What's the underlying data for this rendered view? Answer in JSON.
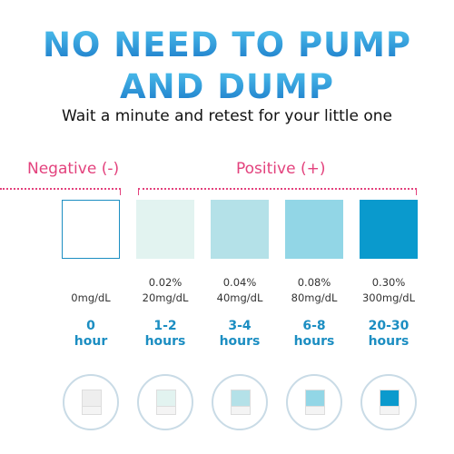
{
  "header": {
    "title_lines": [
      "NO NEED TO PUMP",
      "AND DUMP"
    ],
    "subtitle": "Wait a minute and retest for your little one"
  },
  "groups": {
    "negative": "Negative (-)",
    "positive": "Positive (+)"
  },
  "columns": [
    {
      "color": "#ffffff",
      "mg": "0mg/dL",
      "time": "0",
      "unit": "hour"
    },
    {
      "color": "#e2f3f0",
      "percent": "0.02%",
      "mg": "20mg/dL",
      "time": "1-2",
      "unit": "hours"
    },
    {
      "color": "#b4e1e8",
      "percent": "0.04%",
      "mg": "40mg/dL",
      "time": "3-4",
      "unit": "hours"
    },
    {
      "color": "#92d6e6",
      "percent": "0.08%",
      "mg": "80mg/dL",
      "time": "6-8",
      "unit": "hours"
    },
    {
      "color": "#0a9acd",
      "percent": "0.30%",
      "mg": "300mg/dL",
      "time": "20-30",
      "unit": "hours"
    }
  ]
}
